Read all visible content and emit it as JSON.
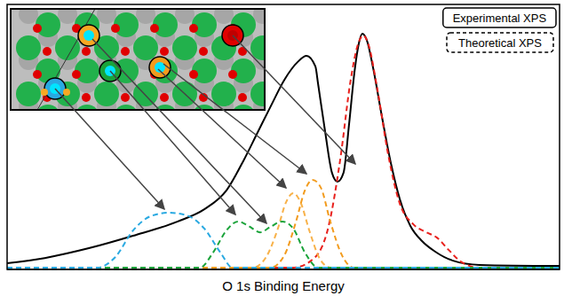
{
  "chart_data": {
    "type": "line",
    "x_label": "O 1s Binding Energy",
    "xlim": [
      0,
      100
    ],
    "ylim": [
      0,
      100
    ],
    "tick_labels": false,
    "grid": false,
    "legend": "upper right",
    "legend_entries": [
      {
        "label": "Experimental XPS",
        "line_style": "solid"
      },
      {
        "label": "Theoretical XPS",
        "line_style": "dashed"
      }
    ],
    "series": [
      {
        "color": "#000000",
        "line_style": "solid",
        "x": [
          0,
          6.8,
          14.8,
          22.8,
          30.9,
          35.7,
          39.7,
          42.9,
          45.3,
          47.7,
          50.2,
          52.6,
          54.2,
          55.8,
          56.3,
          57.6,
          58.8,
          59.8,
          60.9,
          61.9,
          62.9,
          63.7,
          64.3,
          65.1,
          66.2,
          67.8,
          69.5,
          71.1,
          73.0,
          75.1,
          77.5,
          80.7,
          85.5,
          100
        ],
        "values": [
          2.3,
          4.3,
          8.0,
          12.7,
          18.1,
          22.7,
          29.8,
          41.5,
          51.5,
          61.5,
          71.6,
          78.3,
          80.6,
          76.6,
          69.9,
          51.5,
          36.5,
          33.1,
          36.5,
          54.8,
          74.9,
          85.6,
          89.0,
          86.6,
          76.6,
          58.2,
          39.8,
          26.4,
          16.4,
          10.7,
          6.7,
          3.3,
          1.7,
          1.3
        ]
      },
      {
        "color": "#e8201c",
        "line_style": "dashed",
        "x": [
          0,
          51.8,
          55.8,
          58.2,
          60.3,
          62.2,
          63.5,
          64.5,
          65.4,
          67.0,
          69.0,
          71.1,
          73.5,
          75.9,
          77.8,
          79.9,
          82.3,
          85.5,
          100
        ],
        "values": [
          0.7,
          0.7,
          4.7,
          16.4,
          41.5,
          71.6,
          84.9,
          88.3,
          84.9,
          68.2,
          43.1,
          24.7,
          17.1,
          14.0,
          12.0,
          7.4,
          2.7,
          0.7,
          0.7
        ]
      },
      {
        "color": "#f8b24a",
        "line_style": "dashed",
        "x": [
          0,
          44.5,
          46.9,
          48.9,
          50.5,
          51.8,
          53.1,
          54.7,
          56.6,
          58.5,
          100
        ],
        "values": [
          0.7,
          0.7,
          4.7,
          14.7,
          25.4,
          28.8,
          25.4,
          14.7,
          4.0,
          0.7,
          0.7
        ]
      },
      {
        "color": "#f29b1d",
        "line_style": "dashed",
        "x": [
          0,
          47.7,
          50.2,
          52.3,
          53.9,
          55.3,
          56.8,
          58.5,
          60.6,
          62.7,
          100
        ],
        "values": [
          0.7,
          0.7,
          5.4,
          18.1,
          29.8,
          33.8,
          30.8,
          18.1,
          5.4,
          0.7,
          0.7
        ]
      },
      {
        "color": "#1aa33a",
        "line_style": "dashed",
        "x": [
          0,
          34.9,
          37.3,
          39.7,
          41.8,
          43.7,
          45.8,
          47.7,
          49.8,
          51.8,
          53.9,
          56.3,
          100
        ],
        "values": [
          0.7,
          0.7,
          6.4,
          14.7,
          18.1,
          16.4,
          14.0,
          16.1,
          18.1,
          15.4,
          6.4,
          0.7,
          0.7
        ]
      },
      {
        "color": "#29a9e1",
        "line_style": "dashed",
        "x": [
          0,
          16.4,
          19.6,
          22.8,
          26.0,
          29.3,
          32.5,
          35.7,
          38.6,
          40.8,
          100
        ],
        "values": [
          0.7,
          0.7,
          4.7,
          14.7,
          20.1,
          21.4,
          20.4,
          15.4,
          6.4,
          0.7,
          0.7
        ]
      }
    ]
  }
}
